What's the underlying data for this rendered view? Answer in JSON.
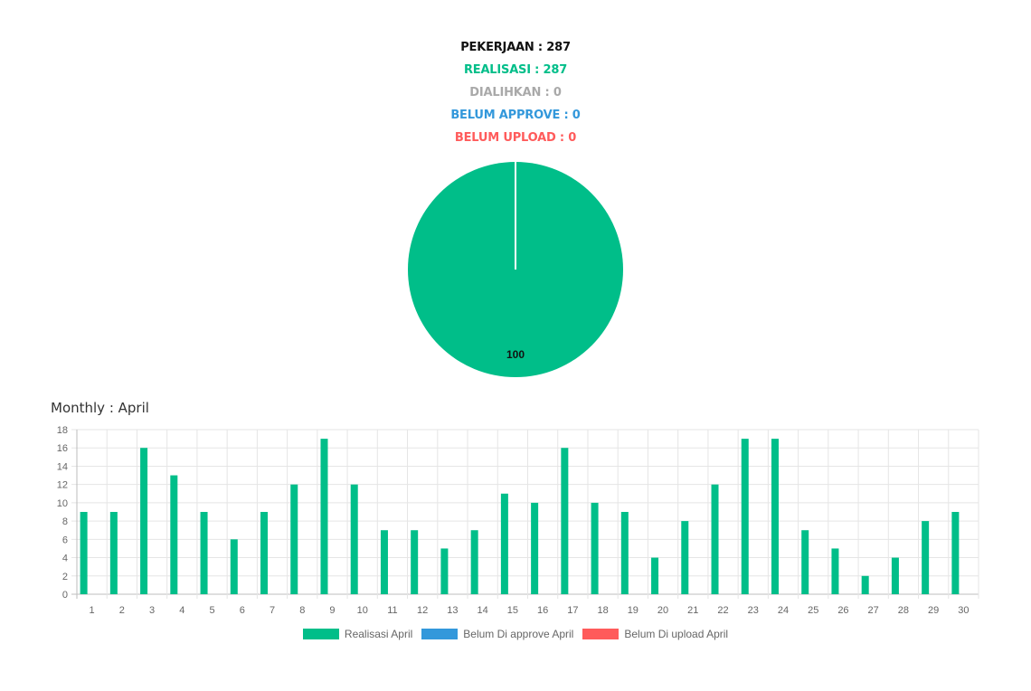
{
  "stats": {
    "pekerjaan": "PEKERJAAN : 287",
    "realisasi": "REALISASI : 287",
    "dialihkan": "DIALIHKAN : 0",
    "belum_approve": "BELUM APPROVE : 0",
    "belum_upload": "BELUM UPLOAD : 0"
  },
  "colors": {
    "black": "#111111",
    "green": "#00BE89",
    "gray": "#A9A9A9",
    "blue": "#3398DB",
    "red": "#FF5B5B"
  },
  "monthly_title": "Monthly : April",
  "chart_data": [
    {
      "type": "pie",
      "slices": [
        {
          "name": "Realisasi",
          "value": 100,
          "color": "#00BE89"
        },
        {
          "name": "Dialihkan",
          "value": 0,
          "color": "#A9A9A9"
        },
        {
          "name": "Belum Approve",
          "value": 0,
          "color": "#3398DB"
        },
        {
          "name": "Belum Upload",
          "value": 0,
          "color": "#FF5B5B"
        }
      ],
      "data_labels": [
        "100"
      ]
    },
    {
      "type": "bar",
      "categories": [
        "1",
        "2",
        "3",
        "4",
        "5",
        "6",
        "7",
        "8",
        "9",
        "10",
        "11",
        "12",
        "13",
        "14",
        "15",
        "16",
        "17",
        "18",
        "19",
        "20",
        "21",
        "22",
        "23",
        "24",
        "25",
        "26",
        "27",
        "28",
        "29",
        "30"
      ],
      "series": [
        {
          "name": "Realisasi April",
          "color": "#00BE89",
          "values": [
            9,
            9,
            16,
            13,
            9,
            6,
            9,
            12,
            17,
            12,
            7,
            7,
            5,
            7,
            11,
            10,
            16,
            10,
            9,
            4,
            8,
            12,
            17,
            17,
            7,
            5,
            2,
            4,
            8,
            9
          ]
        },
        {
          "name": "Belum Di approve April",
          "color": "#3398DB",
          "values": [
            0,
            0,
            0,
            0,
            0,
            0,
            0,
            0,
            0,
            0,
            0,
            0,
            0,
            0,
            0,
            0,
            0,
            0,
            0,
            0,
            0,
            0,
            0,
            0,
            0,
            0,
            0,
            0,
            0,
            0
          ]
        },
        {
          "name": "Belum Di upload April",
          "color": "#FF5B5B",
          "values": [
            0,
            0,
            0,
            0,
            0,
            0,
            0,
            0,
            0,
            0,
            0,
            0,
            0,
            0,
            0,
            0,
            0,
            0,
            0,
            0,
            0,
            0,
            0,
            0,
            0,
            0,
            0,
            0,
            0,
            0
          ]
        }
      ],
      "ylim": [
        0,
        18
      ],
      "yticks": [
        "0",
        "2",
        "4",
        "6",
        "8",
        "10",
        "12",
        "14",
        "16",
        "18"
      ],
      "grid": true,
      "legend_position": "bottom"
    }
  ]
}
